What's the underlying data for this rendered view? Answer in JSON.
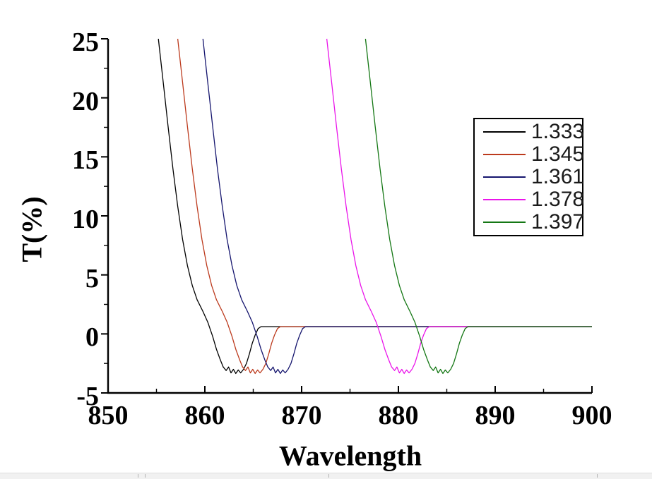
{
  "chart_data": {
    "type": "line",
    "title": "",
    "xlabel": "Wavelength",
    "ylabel": "T(%)",
    "xlim": [
      850,
      900
    ],
    "ylim": [
      -5,
      25
    ],
    "x_major_ticks": [
      850,
      860,
      870,
      880,
      890,
      900
    ],
    "x_minor_ticks": [
      855,
      865,
      875,
      885,
      895
    ],
    "y_major_ticks": [
      25,
      20,
      15,
      10,
      5,
      0,
      -5
    ],
    "y_minor_ticks": [
      22.5,
      17.5,
      12.5,
      7.5,
      2.5,
      -2.5
    ],
    "grid": false,
    "legend_position": "upper right",
    "axis_color": "#000000",
    "plateau_T": 0.62,
    "x_end": 900,
    "dip_profile_dw_T": [
      [
        0,
        25
      ],
      [
        0.5,
        21.3
      ],
      [
        1.0,
        17.6
      ],
      [
        1.5,
        14.0
      ],
      [
        2.0,
        10.8
      ],
      [
        2.5,
        8.0
      ],
      [
        3.0,
        5.8
      ],
      [
        3.5,
        4.1
      ],
      [
        4.0,
        2.9
      ],
      [
        4.6,
        1.9
      ],
      [
        5.1,
        1.0
      ],
      [
        5.6,
        -0.2
      ],
      [
        6.0,
        -1.3
      ],
      [
        6.4,
        -2.2
      ],
      [
        6.7,
        -2.8
      ],
      [
        7.0,
        -3.1
      ],
      [
        7.25,
        -2.8
      ],
      [
        7.5,
        -3.3
      ],
      [
        7.75,
        -3.0
      ],
      [
        8.0,
        -3.35
      ],
      [
        8.25,
        -3.05
      ],
      [
        8.5,
        -3.3
      ],
      [
        8.8,
        -3.0
      ],
      [
        9.1,
        -2.5
      ],
      [
        9.4,
        -1.7
      ],
      [
        9.7,
        -0.8
      ],
      [
        10.0,
        -0.1
      ],
      [
        10.3,
        0.45
      ],
      [
        10.6,
        0.62
      ]
    ],
    "series": [
      {
        "name": "1.333",
        "color": "#000000",
        "onset_wavelength": 855.2,
        "dip_center": 863.2,
        "dip_min_T": -3.35
      },
      {
        "name": "1.345",
        "color": "#bc3a1d",
        "onset_wavelength": 857.2,
        "dip_center": 865.2,
        "dip_min_T": -3.35
      },
      {
        "name": "1.361",
        "color": "#15156e",
        "onset_wavelength": 859.8,
        "dip_center": 867.8,
        "dip_min_T": -3.35
      },
      {
        "name": "1.378",
        "color": "#ea15ea",
        "onset_wavelength": 872.6,
        "dip_center": 880.4,
        "dip_min_T": -3.35
      },
      {
        "name": "1.397",
        "color": "#147714",
        "onset_wavelength": 876.6,
        "dip_center": 884.5,
        "dip_min_T": -3.35
      }
    ]
  },
  "window": {
    "bottom_strip_color": "#f1f1f1",
    "bottom_strip_mark_positions": [
      195,
      205,
      465,
      845
    ]
  }
}
